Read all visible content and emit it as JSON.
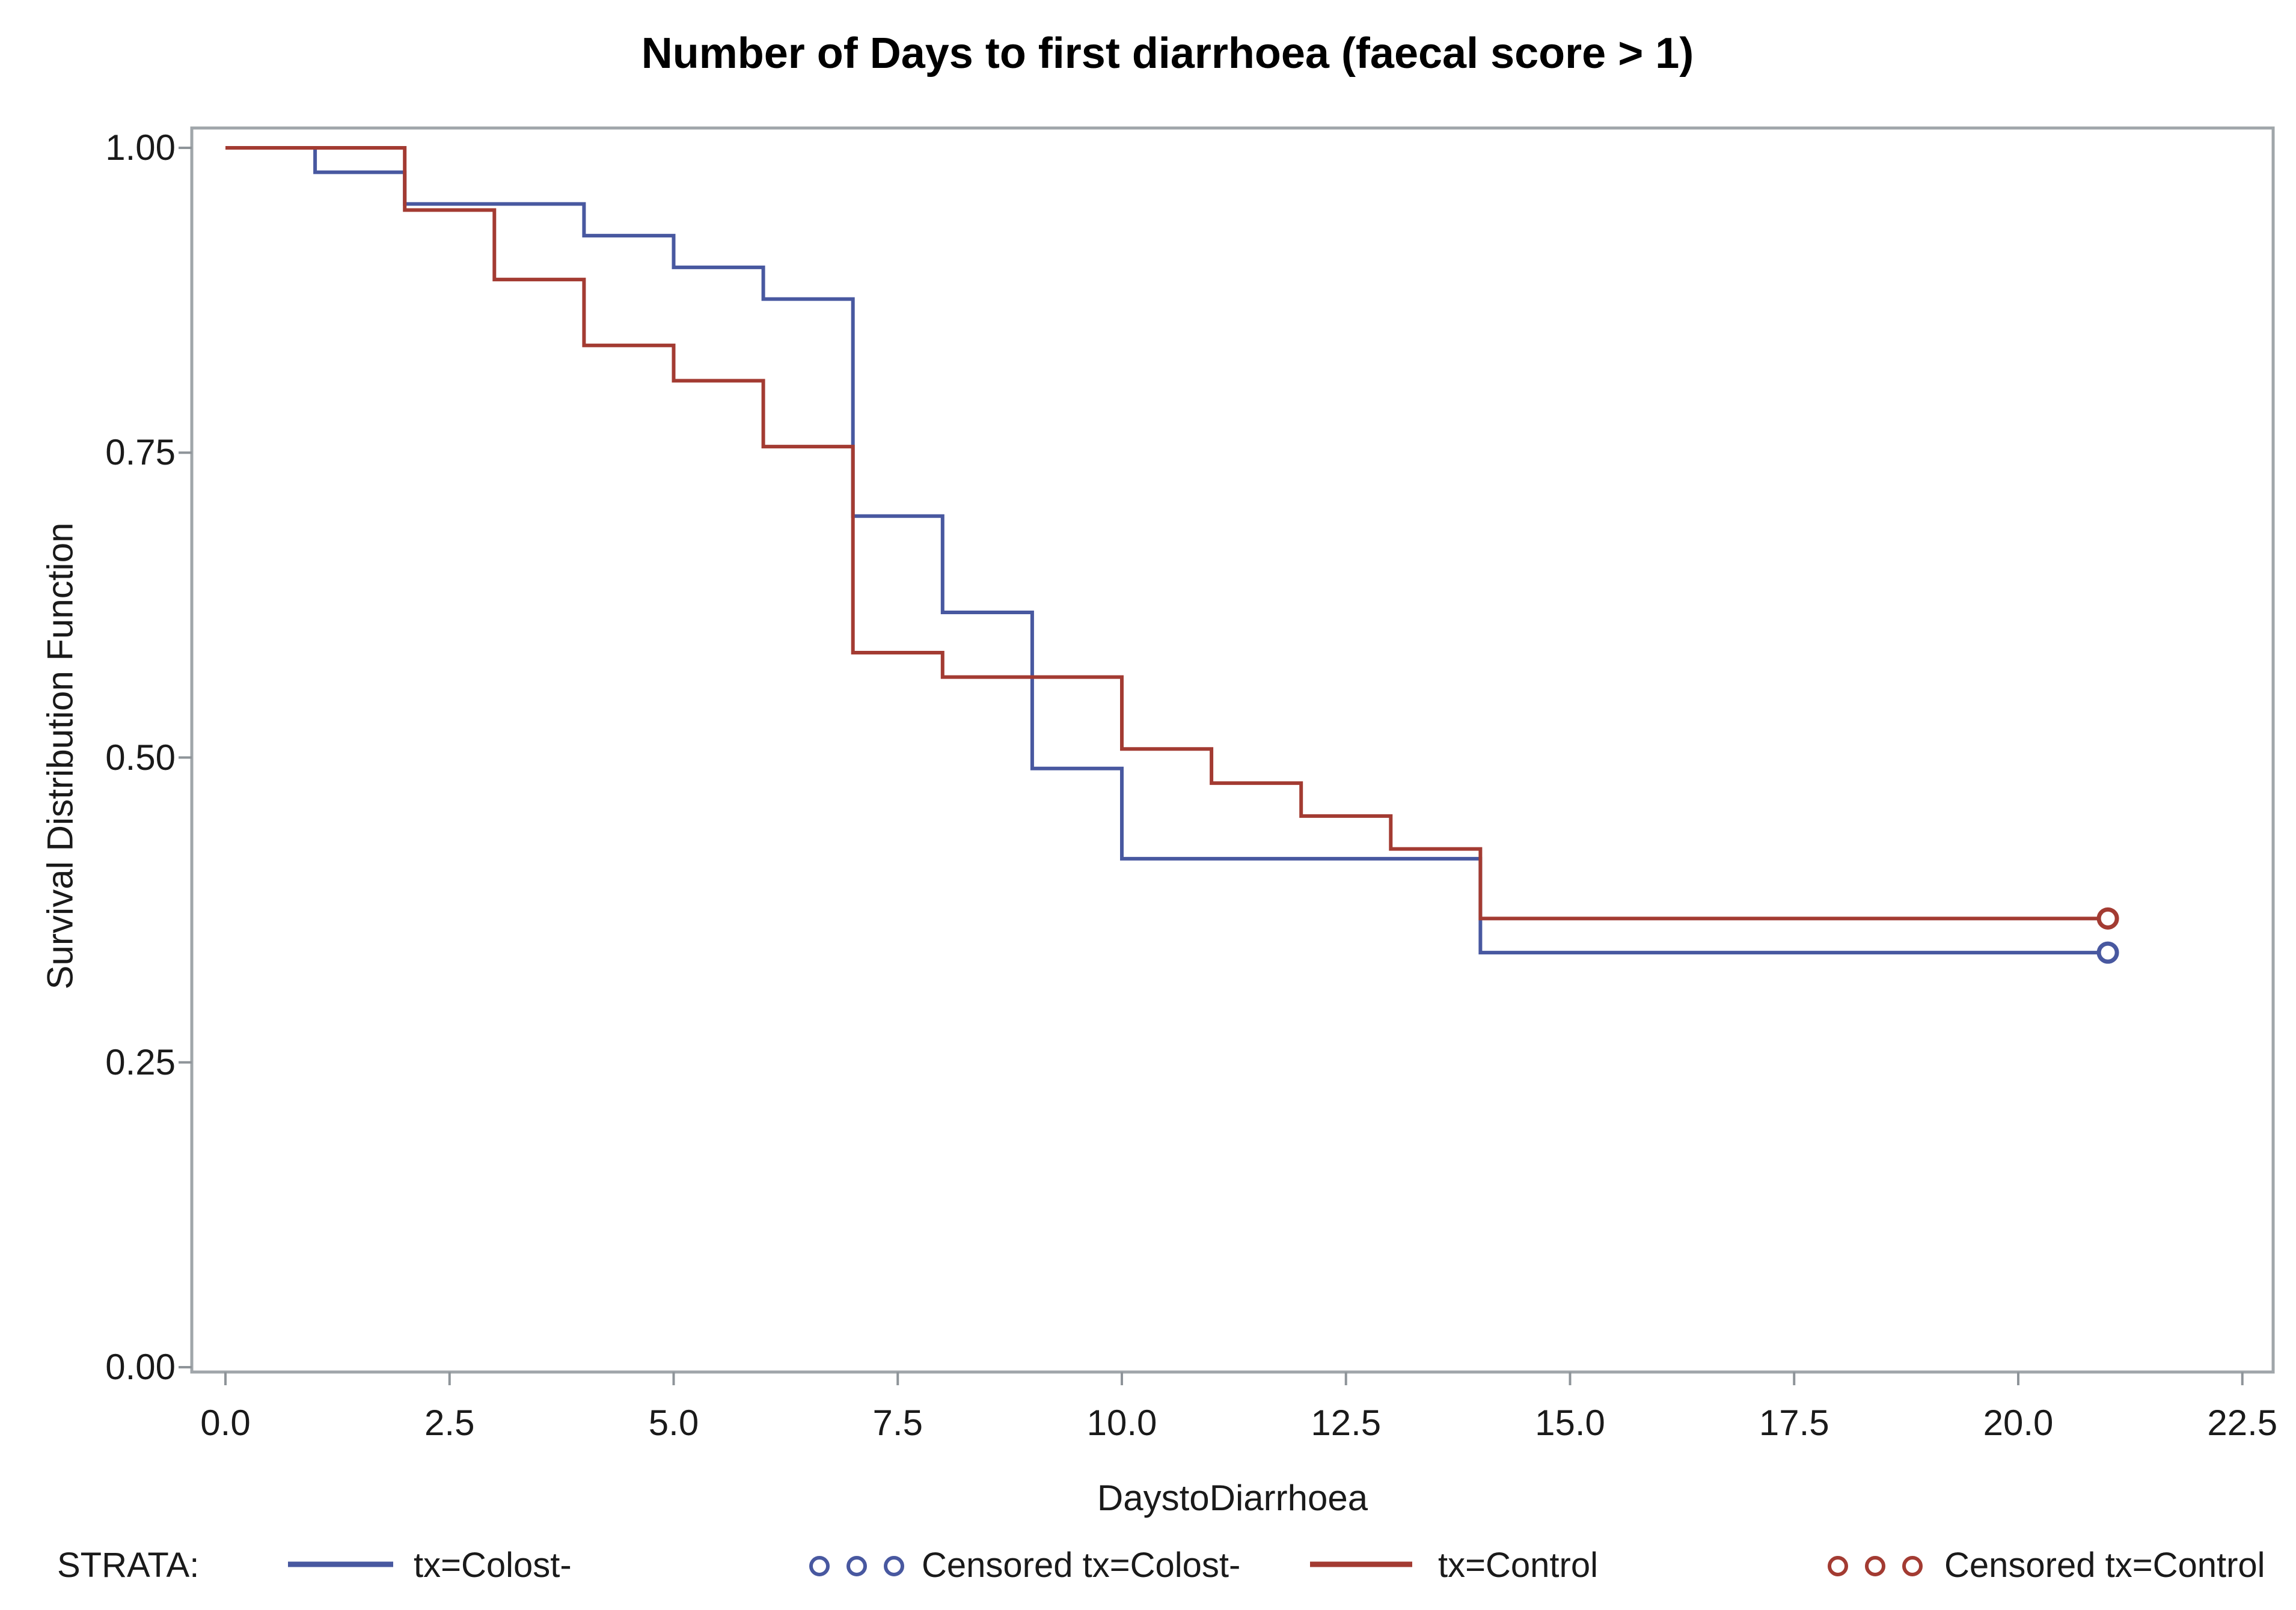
{
  "title": "Number of Days to first diarrhoea (faecal score > 1)",
  "axes": {
    "x": {
      "label": "DaystoDiarrhoea",
      "ticks": [
        "0.0",
        "2.5",
        "5.0",
        "7.5",
        "10.0",
        "12.5",
        "15.0",
        "17.5",
        "20.0",
        "22.5"
      ],
      "tick_values": [
        0,
        2.5,
        5,
        7.5,
        10,
        12.5,
        15,
        17.5,
        20,
        22.5
      ],
      "range": [
        0,
        22.5
      ]
    },
    "y": {
      "label": "Survival Distribution Function",
      "ticks": [
        "1.00",
        "0.75",
        "0.50",
        "0.25",
        "0.00"
      ],
      "tick_values": [
        1,
        0.75,
        0.5,
        0.25,
        0
      ],
      "range": [
        0,
        1
      ]
    }
  },
  "legend": {
    "title": "STRATA:",
    "items": [
      {
        "label": "tx=Colost-",
        "type": "line",
        "color": "#4858A0"
      },
      {
        "label": "Censored tx=Colost-",
        "type": "circles",
        "color": "#4858A0"
      },
      {
        "label": "tx=Control",
        "type": "line",
        "color": "#A33B32"
      },
      {
        "label": "Censored tx=Control",
        "type": "circles",
        "color": "#A33B32"
      }
    ]
  },
  "colors": {
    "colost": "#4858A0",
    "control": "#A33B32",
    "frame": "#A0A6AA",
    "tick": "#8E9499",
    "text": "#1a1a1a"
  },
  "chart_data": {
    "type": "line",
    "subtype": "kaplan-meier-step",
    "title": "Number of Days to first diarrhoea (faecal score > 1)",
    "xlabel": "DaystoDiarrhoea",
    "ylabel": "Survival Distribution Function",
    "xlim": [
      0,
      22.5
    ],
    "ylim": [
      0,
      1
    ],
    "grid": false,
    "legend_position": "bottom",
    "series": [
      {
        "name": "tx=Colost-",
        "color": "#4858A0",
        "steps": [
          [
            0,
            1.0
          ],
          [
            1,
            0.98
          ],
          [
            2,
            0.954
          ],
          [
            4,
            0.928
          ],
          [
            5,
            0.902
          ],
          [
            6,
            0.876
          ],
          [
            7,
            0.698
          ],
          [
            8,
            0.619
          ],
          [
            9,
            0.491
          ],
          [
            10,
            0.417
          ],
          [
            14,
            0.34
          ]
        ],
        "end_day": 21,
        "censored": [
          [
            21,
            0.34
          ]
        ]
      },
      {
        "name": "tx=Control",
        "color": "#A33B32",
        "steps": [
          [
            0,
            1.0
          ],
          [
            2,
            0.949
          ],
          [
            3,
            0.892
          ],
          [
            4,
            0.838
          ],
          [
            5,
            0.809
          ],
          [
            6,
            0.755
          ],
          [
            7,
            0.586
          ],
          [
            8,
            0.566
          ],
          [
            10,
            0.507
          ],
          [
            11,
            0.479
          ],
          [
            12,
            0.452
          ],
          [
            13,
            0.425
          ],
          [
            14,
            0.368
          ]
        ],
        "end_day": 21,
        "censored": [
          [
            21,
            0.368
          ]
        ]
      }
    ]
  }
}
